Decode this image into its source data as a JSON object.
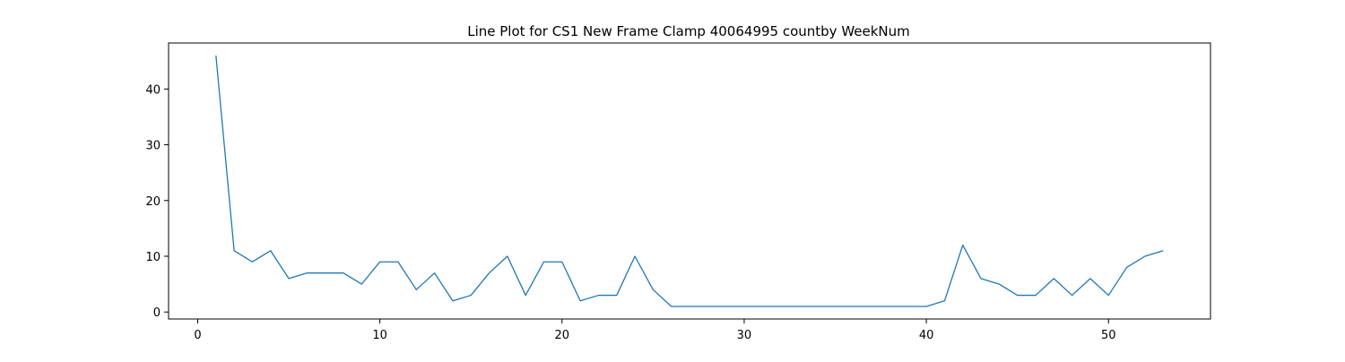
{
  "chart_data": {
    "type": "line",
    "title": "Line Plot for CS1 New Frame Clamp 40064995 countby WeekNum",
    "xlabel": "",
    "ylabel": "",
    "xlim": [
      -1.6,
      55.6
    ],
    "ylim": [
      -1.25,
      48.25
    ],
    "x_ticks": [
      0,
      10,
      20,
      30,
      40,
      50
    ],
    "y_ticks": [
      0,
      10,
      20,
      30,
      40
    ],
    "grid": false,
    "legend": "none",
    "colors": {
      "line": "#1f77b4",
      "axes": "#000000",
      "background": "#ffffff"
    },
    "series": [
      {
        "x": [
          1,
          2,
          3,
          4,
          5,
          6,
          7,
          8,
          9,
          10,
          11,
          12,
          13,
          14,
          15,
          16,
          17,
          18,
          19,
          20,
          21,
          22,
          23,
          24,
          25,
          26,
          27,
          28,
          29,
          30,
          31,
          32,
          33,
          34,
          35,
          36,
          37,
          38,
          39,
          40,
          41,
          42,
          43,
          44,
          45,
          46,
          47,
          48,
          49,
          50,
          51,
          52,
          53
        ],
        "values": [
          46,
          11,
          9,
          11,
          6,
          7,
          7,
          7,
          5,
          9,
          9,
          4,
          7,
          2,
          3,
          7,
          10,
          3,
          9,
          9,
          2,
          3,
          3,
          10,
          4,
          1,
          1,
          1,
          1,
          1,
          1,
          1,
          1,
          1,
          1,
          1,
          1,
          1,
          1,
          1,
          2,
          12,
          6,
          5,
          3,
          3,
          6,
          3,
          6,
          3,
          8,
          10,
          11
        ]
      }
    ]
  }
}
